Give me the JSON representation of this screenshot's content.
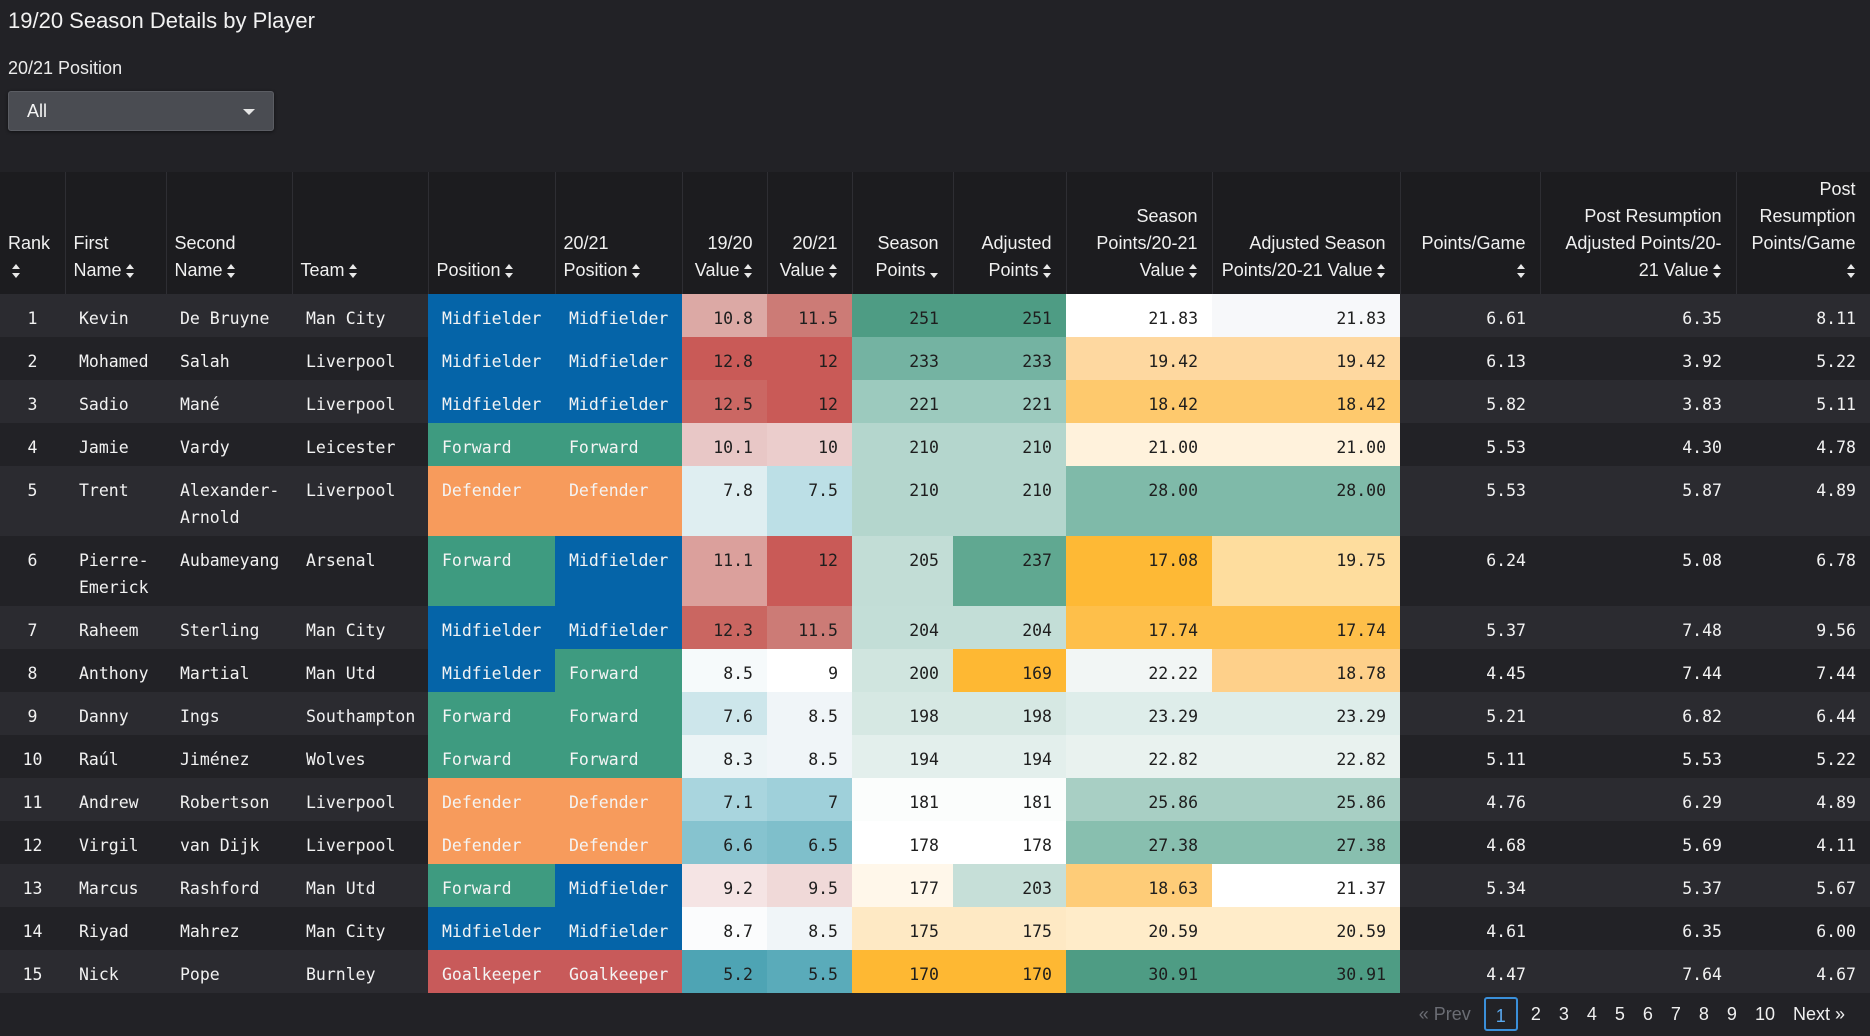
{
  "title": "19/20 Season Details by Player",
  "filter": {
    "label": "20/21 Position",
    "value": "All"
  },
  "columns": [
    {
      "label": "Rank",
      "align": "l",
      "sort": "both"
    },
    {
      "label": "First Name",
      "align": "l",
      "sort": "both"
    },
    {
      "label": "Second Name",
      "align": "l",
      "sort": "both"
    },
    {
      "label": "Team",
      "align": "l",
      "sort": "both"
    },
    {
      "label": "Position",
      "align": "l",
      "sort": "both"
    },
    {
      "label": "20/21 Position",
      "align": "l",
      "sort": "both"
    },
    {
      "label": "19/20 Value",
      "align": "r",
      "sort": "both"
    },
    {
      "label": "20/21 Value",
      "align": "r",
      "sort": "both"
    },
    {
      "label": "Season Points",
      "align": "r",
      "sort": "desc"
    },
    {
      "label": "Adjusted Points",
      "align": "r",
      "sort": "both"
    },
    {
      "label": "Season Points/20-21 Value",
      "align": "r",
      "sort": "both"
    },
    {
      "label": "Adjusted Season Points/20-21 Value",
      "align": "r",
      "sort": "both"
    },
    {
      "label": "Points/Game",
      "align": "r",
      "sort": "both"
    },
    {
      "label": "Post Resumption Adjusted Points/20-21 Value",
      "align": "r",
      "sort": "both"
    },
    {
      "label": "Post Resumption Points/Game",
      "align": "r",
      "sort": "both"
    }
  ],
  "colors": {
    "Midfielder": "#0564a8",
    "Forward": "#3e9b80",
    "Defender": "#f79b5c",
    "Goalkeeper": "#c85a5a"
  },
  "rows": [
    {
      "rank": "1",
      "first": "Kevin",
      "second": "De Bruyne",
      "team": "Man City",
      "pos": "Midfielder",
      "pos2021": "Midfielder",
      "v1920": "10.8",
      "v2021": "11.5",
      "sp": "251",
      "ap": "251",
      "spv": "21.83",
      "aspv": "21.83",
      "ppg": "6.61",
      "prapv": "6.35",
      "prppg": "8.11",
      "c": {
        "v1920": "#dca9a5",
        "v2021": "#cc7b76",
        "sp": "#4e9c84",
        "ap": "#4e9c84",
        "spv": "#ffffff",
        "aspv": "#f7f8fa"
      }
    },
    {
      "rank": "2",
      "first": "Mohamed",
      "second": "Salah",
      "team": "Liverpool",
      "pos": "Midfielder",
      "pos2021": "Midfielder",
      "v1920": "12.8",
      "v2021": "12",
      "sp": "233",
      "ap": "233",
      "spv": "19.42",
      "aspv": "19.42",
      "ppg": "6.13",
      "prapv": "3.92",
      "prppg": "5.22",
      "c": {
        "v1920": "#c95a57",
        "v2021": "#c95a57",
        "sp": "#74b3a2",
        "ap": "#74b3a2",
        "spv": "#fed8a0",
        "aspv": "#fed8a0"
      }
    },
    {
      "rank": "3",
      "first": "Sadio",
      "second": "Mané",
      "team": "Liverpool",
      "pos": "Midfielder",
      "pos2021": "Midfielder",
      "v1920": "12.5",
      "v2021": "12",
      "sp": "221",
      "ap": "221",
      "spv": "18.42",
      "aspv": "18.42",
      "ppg": "5.82",
      "prapv": "3.83",
      "prppg": "5.11",
      "c": {
        "v1920": "#cb6763",
        "v2021": "#c95a57",
        "sp": "#9ccabe",
        "ap": "#9ccabe",
        "spv": "#fec96d",
        "aspv": "#fec96d"
      }
    },
    {
      "rank": "4",
      "first": "Jamie",
      "second": "Vardy",
      "team": "Leicester",
      "pos": "Forward",
      "pos2021": "Forward",
      "v1920": "10.1",
      "v2021": "10",
      "sp": "210",
      "ap": "210",
      "spv": "21.00",
      "aspv": "21.00",
      "ppg": "5.53",
      "prapv": "4.30",
      "prppg": "4.78",
      "c": {
        "v1920": "#e8c7c6",
        "v2021": "#ebcdcc",
        "sp": "#b4d6cd",
        "ap": "#b4d6cd",
        "spv": "#fff2dc",
        "aspv": "#fff2dc"
      }
    },
    {
      "rank": "5",
      "first": "Trent",
      "second": "Alexander-Arnold",
      "team": "Liverpool",
      "pos": "Defender",
      "pos2021": "Defender",
      "v1920": "7.8",
      "v2021": "7.5",
      "sp": "210",
      "ap": "210",
      "spv": "28.00",
      "aspv": "28.00",
      "ppg": "5.53",
      "prapv": "5.87",
      "prppg": "4.89",
      "tall": true,
      "c": {
        "v1920": "#dfeef1",
        "v2021": "#bcdfe6",
        "sp": "#b4d6cd",
        "ap": "#b4d6cd",
        "spv": "#7fbaa9",
        "aspv": "#7fbaa9"
      }
    },
    {
      "rank": "6",
      "first": "Pierre-Emerick",
      "second": "Aubameyang",
      "team": "Arsenal",
      "pos": "Forward",
      "pos2021": "Midfielder",
      "v1920": "11.1",
      "v2021": "12",
      "sp": "205",
      "ap": "237",
      "spv": "17.08",
      "aspv": "19.75",
      "ppg": "6.24",
      "prapv": "5.08",
      "prppg": "6.78",
      "tall": true,
      "c": {
        "v1920": "#dba09c",
        "v2021": "#c95a57",
        "sp": "#c2ddd6",
        "ap": "#60a891",
        "spv": "#feb935",
        "aspv": "#fedd9e"
      }
    },
    {
      "rank": "7",
      "first": "Raheem",
      "second": "Sterling",
      "team": "Man City",
      "pos": "Midfielder",
      "pos2021": "Midfielder",
      "v1920": "12.3",
      "v2021": "11.5",
      "sp": "204",
      "ap": "204",
      "spv": "17.74",
      "aspv": "17.74",
      "ppg": "5.37",
      "prapv": "7.48",
      "prppg": "9.56",
      "c": {
        "v1920": "#ca6661",
        "v2021": "#cc7b76",
        "sp": "#c3ded7",
        "ap": "#c3ded7",
        "spv": "#febf4a",
        "aspv": "#febf4a"
      }
    },
    {
      "rank": "8",
      "first": "Anthony",
      "second": "Martial",
      "team": "Man Utd",
      "pos": "Midfielder",
      "pos2021": "Forward",
      "v1920": "8.5",
      "v2021": "9",
      "sp": "200",
      "ap": "169",
      "spv": "22.22",
      "aspv": "18.78",
      "ppg": "4.45",
      "prapv": "7.44",
      "prppg": "7.44",
      "c": {
        "v1920": "#f6fafb",
        "v2021": "#ffffff",
        "sp": "#d0e5df",
        "ap": "#feb833",
        "spv": "#f2f6f5",
        "aspv": "#fed08a"
      }
    },
    {
      "rank": "9",
      "first": "Danny",
      "second": "Ings",
      "team": "Southampton",
      "pos": "Forward",
      "pos2021": "Forward",
      "v1920": "7.6",
      "v2021": "8.5",
      "sp": "198",
      "ap": "198",
      "spv": "23.29",
      "aspv": "23.29",
      "ppg": "5.21",
      "prapv": "6.82",
      "prppg": "6.44",
      "c": {
        "v1920": "#cde6eb",
        "v2021": "#f0f5f8",
        "sp": "#d6e8e3",
        "ap": "#d6e8e3",
        "spv": "#deedea",
        "aspv": "#deedea"
      }
    },
    {
      "rank": "10",
      "first": "Raúl",
      "second": "Jiménez",
      "team": "Wolves",
      "pos": "Forward",
      "pos2021": "Forward",
      "v1920": "8.3",
      "v2021": "8.5",
      "sp": "194",
      "ap": "194",
      "spv": "22.82",
      "aspv": "22.82",
      "ppg": "5.11",
      "prapv": "5.53",
      "prppg": "5.22",
      "c": {
        "v1920": "#ecf4f6",
        "v2021": "#f0f5f8",
        "sp": "#e3efec",
        "ap": "#e3efec",
        "spv": "#e9f2ef",
        "aspv": "#e9f2ef"
      }
    },
    {
      "rank": "11",
      "first": "Andrew",
      "second": "Robertson",
      "team": "Liverpool",
      "pos": "Defender",
      "pos2021": "Defender",
      "v1920": "7.1",
      "v2021": "7",
      "sp": "181",
      "ap": "181",
      "spv": "25.86",
      "aspv": "25.86",
      "ppg": "4.76",
      "prapv": "6.29",
      "prppg": "4.89",
      "c": {
        "v1920": "#a9d5de",
        "v2021": "#9fd0da",
        "sp": "#fbfdfc",
        "ap": "#fbfdfc",
        "spv": "#a8cfc4",
        "aspv": "#a8cfc4"
      }
    },
    {
      "rank": "12",
      "first": "Virgil",
      "second": "van Dijk",
      "team": "Liverpool",
      "pos": "Defender",
      "pos2021": "Defender",
      "v1920": "6.6",
      "v2021": "6.5",
      "sp": "178",
      "ap": "178",
      "spv": "27.38",
      "aspv": "27.38",
      "ppg": "4.68",
      "prapv": "5.69",
      "prppg": "4.11",
      "c": {
        "v1920": "#86c3cf",
        "v2021": "#7fbfcb",
        "sp": "#ffffff",
        "ap": "#ffffff",
        "spv": "#88bfaf",
        "aspv": "#88bfaf"
      }
    },
    {
      "rank": "13",
      "first": "Marcus",
      "second": "Rashford",
      "team": "Man Utd",
      "pos": "Forward",
      "pos2021": "Midfielder",
      "v1920": "9.2",
      "v2021": "9.5",
      "sp": "177",
      "ap": "203",
      "spv": "18.63",
      "aspv": "21.37",
      "ppg": "5.34",
      "prapv": "5.37",
      "prppg": "5.67",
      "c": {
        "v1920": "#f5e4e4",
        "v2021": "#f0d9d8",
        "sp": "#fff7ea",
        "ap": "#c6dfd8",
        "spv": "#fecc78",
        "aspv": "#ffffff"
      }
    },
    {
      "rank": "14",
      "first": "Riyad",
      "second": "Mahrez",
      "team": "Man City",
      "pos": "Midfielder",
      "pos2021": "Midfielder",
      "v1920": "8.7",
      "v2021": "8.5",
      "sp": "175",
      "ap": "175",
      "spv": "20.59",
      "aspv": "20.59",
      "ppg": "4.61",
      "prapv": "6.35",
      "prppg": "6.00",
      "c": {
        "v1920": "#fbfcfd",
        "v2021": "#f0f5f8",
        "sp": "#fee9c4",
        "ap": "#fee9c4",
        "spv": "#ffecc9",
        "aspv": "#ffecc9"
      }
    },
    {
      "rank": "15",
      "first": "Nick",
      "second": "Pope",
      "team": "Burnley",
      "pos": "Goalkeeper",
      "pos2021": "Goalkeeper",
      "v1920": "5.2",
      "v2021": "5.5",
      "sp": "170",
      "ap": "170",
      "spv": "30.91",
      "aspv": "30.91",
      "ppg": "4.47",
      "prapv": "7.64",
      "prppg": "4.67",
      "c": {
        "v1920": "#4ea4b4",
        "v2021": "#5aabba",
        "sp": "#feb833",
        "ap": "#feb833",
        "spv": "#4e9c84",
        "aspv": "#4e9c84"
      }
    }
  ],
  "pagination": {
    "prev": "« Prev",
    "pages": [
      "1",
      "2",
      "3",
      "4",
      "5",
      "6",
      "7",
      "8",
      "9",
      "10"
    ],
    "current": "1",
    "next": "Next »"
  }
}
